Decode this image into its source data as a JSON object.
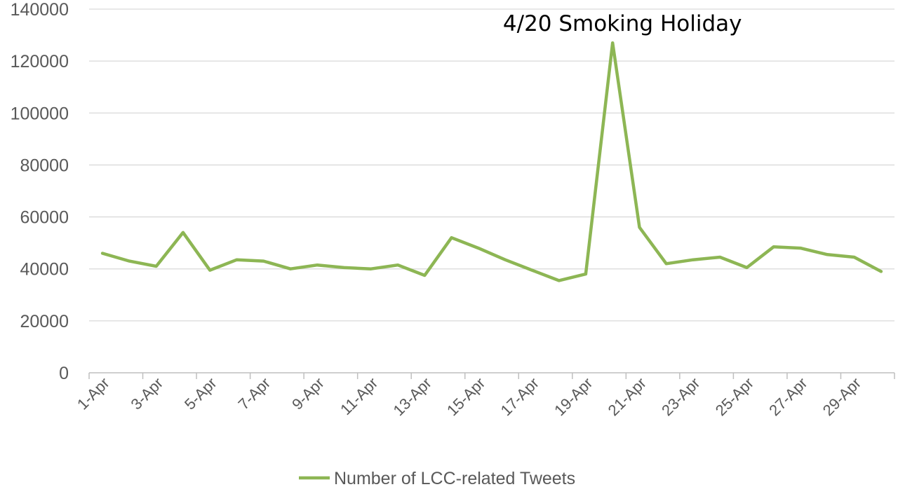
{
  "chart_data": {
    "type": "line",
    "title": "",
    "xlabel": "",
    "ylabel": "",
    "ylim": [
      0,
      140000
    ],
    "y_ticks": [
      0,
      20000,
      40000,
      60000,
      80000,
      100000,
      120000,
      140000
    ],
    "grid": true,
    "legend_position": "bottom",
    "x": [
      "1-Apr",
      "2-Apr",
      "3-Apr",
      "4-Apr",
      "5-Apr",
      "6-Apr",
      "7-Apr",
      "8-Apr",
      "9-Apr",
      "10-Apr",
      "11-Apr",
      "12-Apr",
      "13-Apr",
      "14-Apr",
      "15-Apr",
      "16-Apr",
      "17-Apr",
      "18-Apr",
      "19-Apr",
      "20-Apr",
      "21-Apr",
      "22-Apr",
      "23-Apr",
      "24-Apr",
      "25-Apr",
      "26-Apr",
      "27-Apr",
      "28-Apr",
      "29-Apr",
      "30-Apr"
    ],
    "x_tick_labels": [
      "1-Apr",
      "3-Apr",
      "5-Apr",
      "7-Apr",
      "9-Apr",
      "11-Apr",
      "13-Apr",
      "15-Apr",
      "17-Apr",
      "19-Apr",
      "21-Apr",
      "23-Apr",
      "25-Apr",
      "27-Apr",
      "29-Apr"
    ],
    "series": [
      {
        "name": "Number of LCC-related Tweets",
        "color": "#8db654",
        "values": [
          46000,
          43000,
          41000,
          54000,
          39500,
          43500,
          43000,
          40000,
          41500,
          40500,
          40000,
          41500,
          37500,
          52000,
          48000,
          43500,
          39500,
          35500,
          38000,
          127000,
          56000,
          42000,
          43500,
          44500,
          40500,
          48500,
          48000,
          45500,
          44500,
          39000
        ]
      }
    ],
    "annotations": [
      {
        "text": "4/20 Smoking Holiday",
        "x": "20-Apr",
        "y": 127000
      }
    ]
  }
}
